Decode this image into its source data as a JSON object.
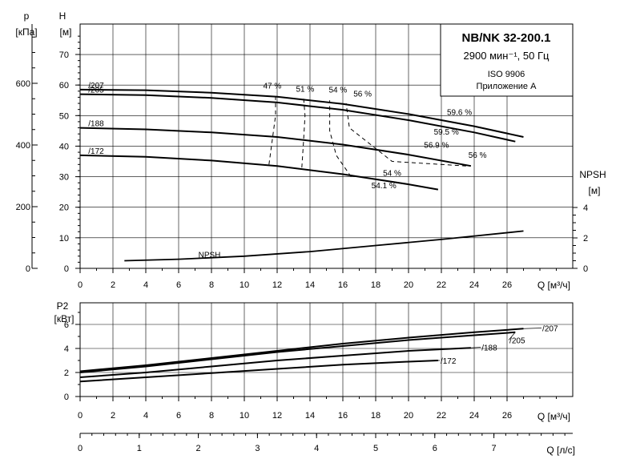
{
  "chart_data": [
    {
      "type": "line",
      "title": "NB/NK 32-200.1",
      "subtitle": "2900 мин⁻¹, 50 Гц",
      "standard": "ISO 9906",
      "annex": "Приложение А",
      "left_axis_p": {
        "label_top": "p",
        "label_unit": "[кПа]",
        "ticks": [
          0,
          200,
          400,
          600
        ]
      },
      "ylabel": "H",
      "yunit": "[м]",
      "ylim": [
        0,
        80
      ],
      "yticks": [
        0,
        10,
        20,
        30,
        40,
        50,
        60,
        70
      ],
      "xlabel": "Q [м³/ч]",
      "xlim": [
        0,
        28
      ],
      "xticks": [
        0,
        2,
        4,
        6,
        8,
        10,
        12,
        14,
        16,
        18,
        20,
        22,
        24,
        26
      ],
      "right_axis": {
        "label": "NPSH",
        "unit": "[м]",
        "ticks": [
          0,
          2,
          4
        ]
      },
      "grid": true,
      "series": [
        {
          "name": "/207",
          "x": [
            0,
            4,
            8,
            12,
            16,
            20,
            24,
            27
          ],
          "y": [
            58.5,
            58.3,
            57.5,
            56.2,
            53.8,
            50.5,
            46.5,
            43
          ]
        },
        {
          "name": "/205",
          "x": [
            0,
            4,
            8,
            12,
            16,
            20,
            24,
            26.5
          ],
          "y": [
            57,
            56.7,
            55.8,
            54.3,
            51.9,
            48.5,
            44.5,
            41.5
          ]
        },
        {
          "name": "/188",
          "x": [
            0,
            4,
            8,
            12,
            16,
            20,
            23.8
          ],
          "y": [
            46,
            45.5,
            44.5,
            43,
            40.5,
            37.2,
            33.5
          ]
        },
        {
          "name": "/172",
          "x": [
            0,
            4,
            8,
            12,
            16,
            20,
            21.8
          ],
          "y": [
            37,
            36.5,
            35.3,
            33.5,
            30.8,
            27.5,
            25.8
          ]
        },
        {
          "name": "NPSH",
          "axis": "right",
          "x": [
            2.7,
            6,
            10,
            14,
            18,
            22,
            27
          ],
          "y": [
            0.5,
            0.6,
            0.8,
            1.1,
            1.5,
            1.9,
            2.45
          ]
        }
      ],
      "efficiency_labels": [
        "47 %",
        "51 %",
        "54 %",
        "56 %",
        "59.6 %",
        "59.5 %",
        "56.9 %",
        "56 %",
        "54 %",
        "54.1 %"
      ],
      "efficiency_curves": [
        {
          "label": "47 %",
          "x": [
            11.5,
            11.7,
            11.9,
            11.9
          ],
          "y": [
            34,
            42,
            50,
            57.5
          ]
        },
        {
          "label": "51 %",
          "x": [
            13.5,
            13.6,
            13.7,
            13.6
          ],
          "y": [
            33,
            41,
            50,
            56.5
          ]
        },
        {
          "label": "54 %",
          "x": [
            16.5,
            15.6,
            15.2,
            15.2
          ],
          "y": [
            30,
            37,
            45,
            55
          ]
        },
        {
          "label": "56 %",
          "x": [
            23.5,
            19,
            16.4,
            16.2
          ],
          "y": [
            33.5,
            35,
            46,
            54
          ]
        }
      ]
    },
    {
      "type": "line",
      "ylabel": "P2",
      "yunit": "[кВт]",
      "ylim": [
        0,
        7
      ],
      "yticks": [
        0,
        2,
        4,
        6
      ],
      "xlabel": "Q [м³/ч]",
      "xlim": [
        0,
        28
      ],
      "xticks": [
        0,
        2,
        4,
        6,
        8,
        10,
        12,
        14,
        16,
        18,
        20,
        22,
        24,
        26
      ],
      "grid": true,
      "series": [
        {
          "name": "/207",
          "x": [
            0,
            4,
            8,
            12,
            16,
            20,
            24,
            27
          ],
          "y": [
            2.1,
            2.6,
            3.2,
            3.8,
            4.4,
            4.9,
            5.35,
            5.65
          ]
        },
        {
          "name": "/205",
          "x": [
            0,
            4,
            8,
            12,
            16,
            20,
            24,
            26.5
          ],
          "y": [
            2.0,
            2.5,
            3.1,
            3.7,
            4.2,
            4.7,
            5.1,
            5.35
          ]
        },
        {
          "name": "/188",
          "x": [
            0,
            4,
            8,
            12,
            16,
            20,
            23.8
          ],
          "y": [
            1.6,
            2.0,
            2.5,
            3.0,
            3.4,
            3.8,
            4.05
          ]
        },
        {
          "name": "/172",
          "x": [
            0,
            4,
            8,
            12,
            16,
            20,
            21.8
          ],
          "y": [
            1.25,
            1.6,
            1.95,
            2.3,
            2.65,
            2.9,
            3.0
          ]
        }
      ]
    },
    {
      "type": "axis",
      "xlabel": "Q [л/с]",
      "xlim": [
        0,
        7.78
      ],
      "xticks": [
        0,
        1,
        2,
        3,
        4,
        5,
        6,
        7
      ]
    }
  ]
}
